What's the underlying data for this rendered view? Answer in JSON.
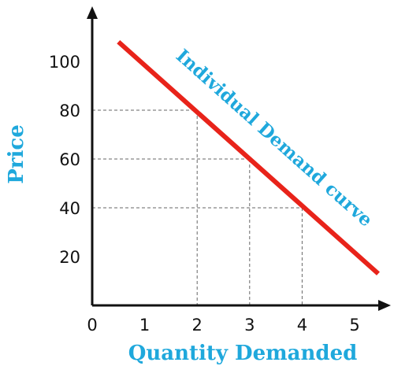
{
  "chart_data": {
    "type": "line",
    "title": "",
    "xlabel": "Quantity Demanded",
    "ylabel": "Price",
    "xlim": [
      0,
      5.5
    ],
    "ylim": [
      0,
      120
    ],
    "x_ticks": [
      "0",
      "1",
      "2",
      "3",
      "4",
      "5"
    ],
    "y_ticks": [
      "20",
      "40",
      "60",
      "80",
      "100"
    ],
    "grid": false,
    "series": [
      {
        "name": "Individual Demand curve",
        "color": "#e8231a",
        "x": [
          0.5,
          5.45
        ],
        "y": [
          108,
          13
        ]
      }
    ],
    "reference_points": [
      {
        "x": 2,
        "y": 80
      },
      {
        "x": 3,
        "y": 60
      },
      {
        "x": 4,
        "y": 40
      }
    ],
    "colors": {
      "curve": "#e8231a",
      "labels": "#1fa8dc",
      "axis": "#111111",
      "guides": "#666666"
    }
  }
}
